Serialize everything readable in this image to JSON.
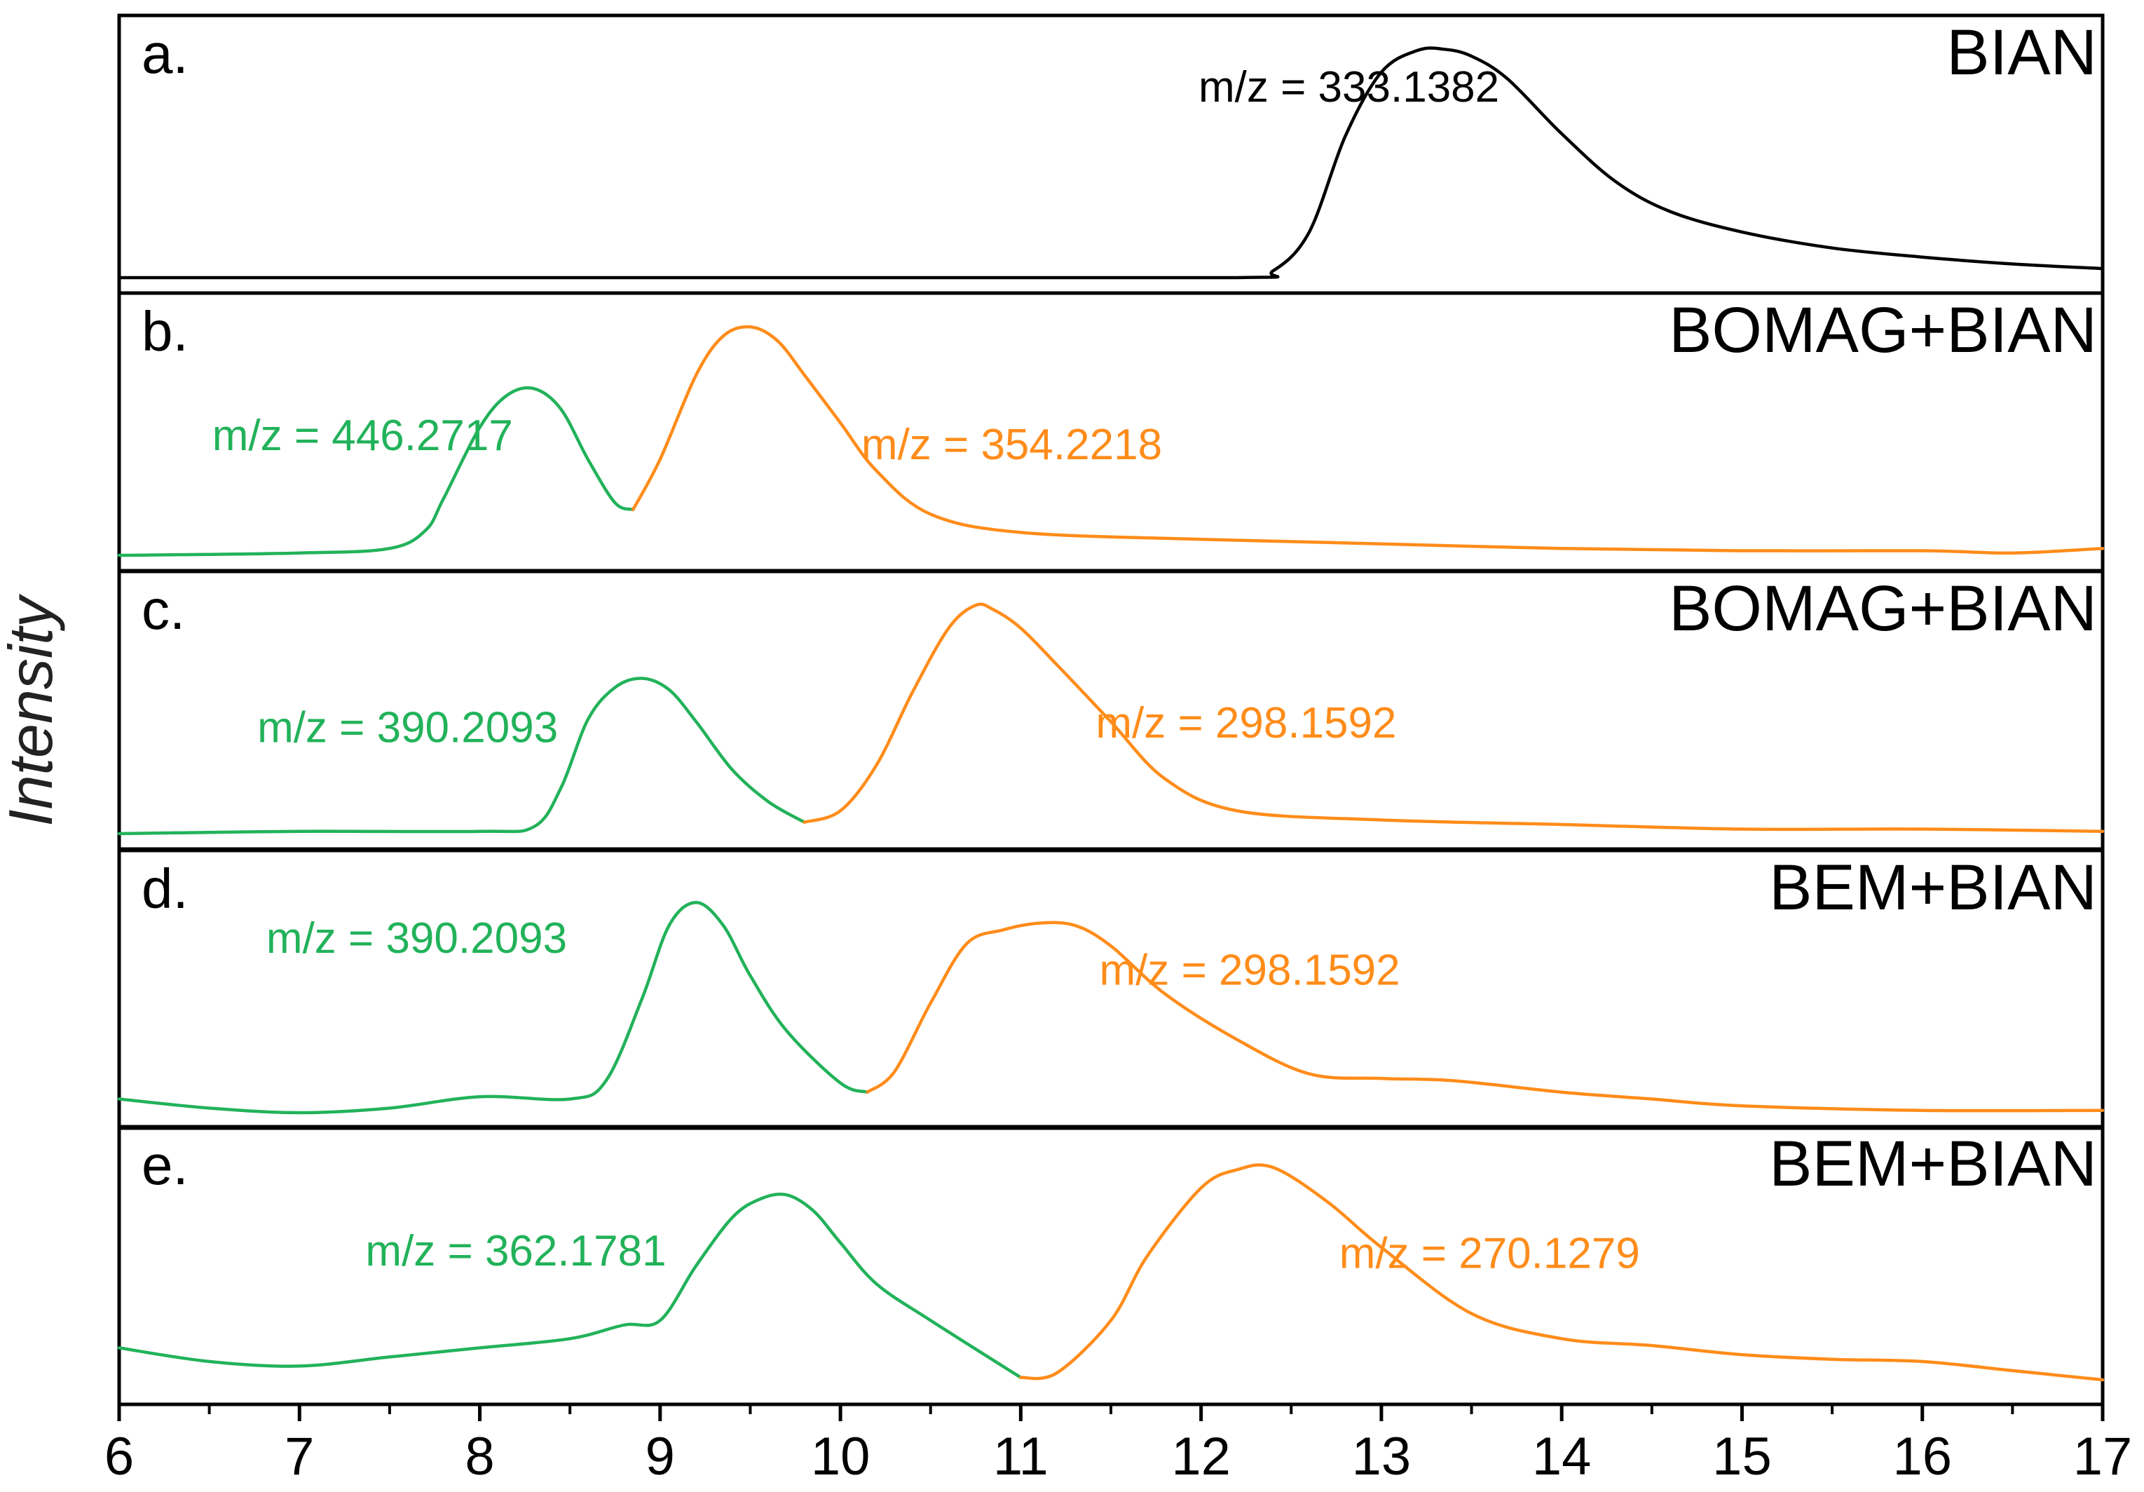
{
  "chart_data": {
    "type": "line",
    "ylabel": "Intensity",
    "xlabel": "",
    "xlim": [
      6,
      17
    ],
    "x_ticks": [
      "6",
      "7",
      "8",
      "9",
      "10",
      "11",
      "12",
      "13",
      "14",
      "15",
      "16",
      "17"
    ],
    "grid": false,
    "colors": {
      "black": "#000000",
      "green": "#22b25a",
      "orange": "#ff8c1a"
    },
    "panels": [
      {
        "letter": "a.",
        "title": "BIAN",
        "ylim": [
          0,
          1.05
        ],
        "series": [
          {
            "name": "m/z = 333.1382",
            "label": "m/z = 333.1382",
            "color": "#000000",
            "label_anchor_x": 12.82,
            "label_anchor_y": 0.77,
            "x": [
              6,
              10,
              12.2,
              12.4,
              12.6,
              12.8,
              13.0,
              13.2,
              13.35,
              13.5,
              13.7,
              14.0,
              14.3,
              14.6,
              15.0,
              15.5,
              16.0,
              16.5,
              17
            ],
            "y": [
              0,
              0,
              0,
              0.03,
              0.2,
              0.62,
              0.9,
              0.995,
              1.0,
              0.97,
              0.87,
              0.63,
              0.42,
              0.29,
              0.2,
              0.13,
              0.09,
              0.06,
              0.04
            ]
          }
        ]
      },
      {
        "letter": "b.",
        "title": "BOMAG+BIAN",
        "ylim": [
          0,
          1.05
        ],
        "series": [
          {
            "name": "m/z = 446.2717",
            "label": "m/z = 446.2717",
            "color": "#22b25a",
            "label_anchor_x": 7.35,
            "label_anchor_y": 0.46,
            "x": [
              6,
              7,
              7.5,
              7.7,
              7.8,
              8.0,
              8.15,
              8.3,
              8.45,
              8.6,
              8.75,
              8.85
            ],
            "y": [
              0,
              0.01,
              0.03,
              0.11,
              0.25,
              0.56,
              0.7,
              0.73,
              0.64,
              0.42,
              0.23,
              0.2
            ]
          },
          {
            "name": "m/z = 354.2218",
            "label": "m/z = 354.2218",
            "color": "#ff8c1a",
            "label_anchor_x": 10.95,
            "label_anchor_y": 0.42,
            "x": [
              8.85,
              9.0,
              9.2,
              9.35,
              9.5,
              9.65,
              9.8,
              10.0,
              10.2,
              10.5,
              11.0,
              12.0,
              13.0,
              14.0,
              15.0,
              16.0,
              16.5,
              17
            ],
            "y": [
              0.2,
              0.42,
              0.79,
              0.96,
              1.0,
              0.94,
              0.79,
              0.58,
              0.37,
              0.18,
              0.1,
              0.07,
              0.05,
              0.03,
              0.02,
              0.02,
              0.01,
              0.03
            ]
          }
        ]
      },
      {
        "letter": "c.",
        "title": "BOMAG+BIAN",
        "ylim": [
          0,
          1.05
        ],
        "series": [
          {
            "name": "m/z = 390.2093",
            "label": "m/z = 390.2093",
            "color": "#22b25a",
            "label_anchor_x": 7.6,
            "label_anchor_y": 0.4,
            "x": [
              6,
              7,
              8.0,
              8.3,
              8.45,
              8.6,
              8.75,
              8.9,
              9.05,
              9.2,
              9.4,
              9.6,
              9.8
            ],
            "y": [
              0,
              0.01,
              0.01,
              0.03,
              0.2,
              0.5,
              0.64,
              0.68,
              0.63,
              0.49,
              0.28,
              0.14,
              0.05
            ]
          },
          {
            "name": "m/z = 298.1592",
            "label": "m/z = 298.1592",
            "color": "#ff8c1a",
            "label_anchor_x": 12.25,
            "label_anchor_y": 0.42,
            "x": [
              9.8,
              10.0,
              10.2,
              10.4,
              10.6,
              10.75,
              10.85,
              11.0,
              11.2,
              11.5,
              11.8,
              12.2,
              13.0,
              14.0,
              15.0,
              16.0,
              17
            ],
            "y": [
              0.05,
              0.1,
              0.3,
              0.62,
              0.9,
              1.0,
              0.98,
              0.9,
              0.74,
              0.49,
              0.24,
              0.1,
              0.06,
              0.04,
              0.02,
              0.02,
              0.01
            ]
          }
        ]
      },
      {
        "letter": "d.",
        "title": "BEM+BIAN",
        "ylim": [
          0,
          1.05
        ],
        "series": [
          {
            "name": "m/z = 390.2093",
            "label": "m/z = 390.2093",
            "color": "#22b25a",
            "label_anchor_x": 7.65,
            "label_anchor_y": 0.7,
            "x": [
              6,
              6.5,
              7.0,
              7.5,
              8.0,
              8.5,
              8.7,
              8.9,
              9.05,
              9.2,
              9.35,
              9.5,
              9.7,
              10.0,
              10.15
            ],
            "y": [
              0.06,
              0.02,
              0.0,
              0.02,
              0.07,
              0.06,
              0.14,
              0.5,
              0.82,
              0.92,
              0.82,
              0.6,
              0.36,
              0.13,
              0.09
            ]
          },
          {
            "name": "m/z = 298.1592",
            "label": "m/z = 298.1592",
            "color": "#ff8c1a",
            "label_anchor_x": 12.27,
            "label_anchor_y": 0.56,
            "x": [
              10.15,
              10.3,
              10.5,
              10.7,
              10.9,
              11.1,
              11.3,
              11.5,
              11.8,
              12.2,
              12.6,
              13.0,
              13.4,
              14.0,
              14.5,
              15.0,
              16.0,
              17
            ],
            "y": [
              0.09,
              0.18,
              0.48,
              0.74,
              0.8,
              0.83,
              0.82,
              0.73,
              0.52,
              0.32,
              0.17,
              0.15,
              0.14,
              0.09,
              0.06,
              0.03,
              0.01,
              0.01
            ]
          }
        ]
      },
      {
        "letter": "e.",
        "title": "BEM+BIAN",
        "ylim": [
          0,
          1.05
        ],
        "series": [
          {
            "name": "m/z = 362.1781",
            "label": "m/z = 362.1781",
            "color": "#22b25a",
            "label_anchor_x": 8.2,
            "label_anchor_y": 0.54,
            "x": [
              6,
              6.5,
              7.0,
              7.5,
              8.0,
              8.5,
              8.8,
              9.0,
              9.2,
              9.4,
              9.55,
              9.7,
              9.85,
              10.0,
              10.2,
              10.5,
              11.0
            ],
            "y": [
              0.18,
              0.12,
              0.1,
              0.14,
              0.18,
              0.22,
              0.28,
              0.3,
              0.54,
              0.75,
              0.83,
              0.85,
              0.78,
              0.64,
              0.46,
              0.3,
              0.05
            ]
          },
          {
            "name": "m/z = 270.1279",
            "label": "m/z = 270.1279",
            "color": "#ff8c1a",
            "label_anchor_x": 13.6,
            "label_anchor_y": 0.53,
            "x": [
              11.0,
              11.2,
              11.5,
              11.7,
              12.0,
              12.2,
              12.4,
              12.7,
              13.0,
              13.5,
              14.0,
              14.5,
              15.0,
              15.5,
              16.0,
              16.5,
              17
            ],
            "y": [
              0.05,
              0.07,
              0.3,
              0.58,
              0.88,
              0.96,
              0.97,
              0.82,
              0.62,
              0.33,
              0.22,
              0.19,
              0.15,
              0.13,
              0.12,
              0.08,
              0.04
            ]
          }
        ]
      }
    ]
  }
}
